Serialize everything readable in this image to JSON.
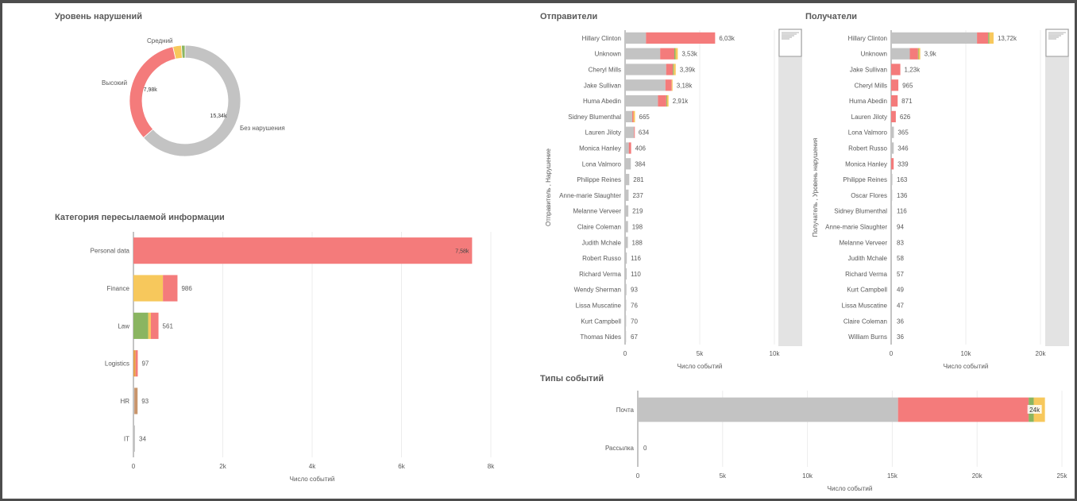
{
  "colors": {
    "grey": "#c3c3c3",
    "red": "#f47b7b",
    "yellow": "#f7c85c",
    "green": "#8ab561",
    "orange": "#e8a04a",
    "axis": "#8a8a8a",
    "grid": "#ececec",
    "text": "#595959"
  },
  "panels": {
    "violation_level": {
      "title": "Уровень нарушений"
    },
    "category": {
      "title": "Категория пересылаемой информации"
    },
    "senders": {
      "title": "Отправители"
    },
    "recipients": {
      "title": "Получатели"
    },
    "event_types": {
      "title": "Типы событий"
    }
  },
  "chart_data": [
    {
      "id": "violation_level",
      "type": "pie",
      "title": "Уровень нарушений",
      "slices": [
        {
          "label": "Без нарушения",
          "value": 15.34,
          "value_label": "15,34k",
          "color": "#c3c3c3"
        },
        {
          "label": "Высокий",
          "value": 7.98,
          "value_label": "7,98k",
          "color": "#f47b7b"
        },
        {
          "label": "Средний",
          "value": 0.6,
          "value_label": "",
          "color": "#f7c85c"
        },
        {
          "label": "",
          "value": 0.25,
          "value_label": "",
          "color": "#8ab561"
        }
      ]
    },
    {
      "id": "category",
      "type": "bar",
      "orientation": "horizontal",
      "stacked": true,
      "title": "Категория пересылаемой информации",
      "xlabel": "Число событий",
      "xlim": [
        0,
        8000
      ],
      "xticks": [
        "0",
        "2k",
        "4k",
        "6k",
        "8k"
      ],
      "categories": [
        "Personal data",
        "Finance",
        "Law",
        "Logistics",
        "HR",
        "IT"
      ],
      "totals": [
        7580,
        986,
        561,
        97,
        93,
        34
      ],
      "total_labels": [
        "7,58k",
        "986",
        "561",
        "97",
        "93",
        "34"
      ],
      "segments": [
        [
          {
            "c": "#f47b7b",
            "v": 7580
          }
        ],
        [
          {
            "c": "#f7c85c",
            "v": 660
          },
          {
            "c": "#f47b7b",
            "v": 326
          }
        ],
        [
          {
            "c": "#8ab561",
            "v": 330
          },
          {
            "c": "#f7c85c",
            "v": 60
          },
          {
            "c": "#f47b7b",
            "v": 171
          }
        ],
        [
          {
            "c": "#e8a04a",
            "v": 50
          },
          {
            "c": "#f47b7b",
            "v": 47
          }
        ],
        [
          {
            "c": "#c3c3c3",
            "v": 20
          },
          {
            "c": "#c8956b",
            "v": 73
          }
        ],
        [
          {
            "c": "#c3c3c3",
            "v": 34
          }
        ]
      ]
    },
    {
      "id": "senders",
      "type": "bar",
      "orientation": "horizontal",
      "stacked": true,
      "title": "Отправители",
      "xlabel": "Число событий",
      "ylabel": "Отправитель , Нарушение",
      "xlim": [
        0,
        10000
      ],
      "xticks": [
        "0",
        "5k",
        "10k"
      ],
      "categories": [
        "Hillary Clinton",
        "Unknown",
        "Cheryl Mills",
        "Jake Sullivan",
        "Huma Abedin",
        "Sidney Blumenthal",
        "Lauren Jiloty",
        "Monica Hanley",
        "Lona Valmoro",
        "Philippe Reines",
        "Anne-marie Slaughter",
        "Melanne Verveer",
        "Claire Coleman",
        "Judith Mchale",
        "Robert Russo",
        "Richard Verma",
        "Wendy Sherman",
        "Lissa Muscatine",
        "Kurt Campbell",
        "Thomas Nides"
      ],
      "totals": [
        6030,
        3530,
        3390,
        3180,
        2910,
        665,
        634,
        406,
        384,
        281,
        237,
        219,
        198,
        188,
        116,
        110,
        93,
        76,
        70,
        67
      ],
      "total_labels": [
        "6,03k",
        "3,53k",
        "3,39k",
        "3,18k",
        "2,91k",
        "665",
        "634",
        "406",
        "384",
        "281",
        "237",
        "219",
        "198",
        "188",
        "116",
        "110",
        "93",
        "76",
        "70",
        "67"
      ],
      "segments": [
        [
          {
            "c": "#c3c3c3",
            "v": 1400
          },
          {
            "c": "#f47b7b",
            "v": 4630
          }
        ],
        [
          {
            "c": "#c3c3c3",
            "v": 2350
          },
          {
            "c": "#f47b7b",
            "v": 950
          },
          {
            "c": "#8ab561",
            "v": 80
          },
          {
            "c": "#f7c85c",
            "v": 150
          }
        ],
        [
          {
            "c": "#c3c3c3",
            "v": 2750
          },
          {
            "c": "#f47b7b",
            "v": 450
          },
          {
            "c": "#8ab561",
            "v": 60
          },
          {
            "c": "#f7c85c",
            "v": 130
          }
        ],
        [
          {
            "c": "#c3c3c3",
            "v": 2700
          },
          {
            "c": "#f47b7b",
            "v": 420
          },
          {
            "c": "#f7c85c",
            "v": 60
          }
        ],
        [
          {
            "c": "#c3c3c3",
            "v": 2200
          },
          {
            "c": "#f47b7b",
            "v": 560
          },
          {
            "c": "#8ab561",
            "v": 50
          },
          {
            "c": "#f7c85c",
            "v": 100
          }
        ],
        [
          {
            "c": "#c3c3c3",
            "v": 480
          },
          {
            "c": "#f47b7b",
            "v": 80
          },
          {
            "c": "#f7c85c",
            "v": 105
          }
        ],
        [
          {
            "c": "#c3c3c3",
            "v": 600
          },
          {
            "c": "#f47b7b",
            "v": 34
          }
        ],
        [
          {
            "c": "#c3c3c3",
            "v": 250
          },
          {
            "c": "#f47b7b",
            "v": 156
          }
        ],
        [
          {
            "c": "#c3c3c3",
            "v": 384
          }
        ],
        [
          {
            "c": "#c3c3c3",
            "v": 281
          }
        ],
        [
          {
            "c": "#c3c3c3",
            "v": 237
          }
        ],
        [
          {
            "c": "#c3c3c3",
            "v": 219
          }
        ],
        [
          {
            "c": "#c3c3c3",
            "v": 198
          }
        ],
        [
          {
            "c": "#c3c3c3",
            "v": 188
          }
        ],
        [
          {
            "c": "#c3c3c3",
            "v": 116
          }
        ],
        [
          {
            "c": "#c3c3c3",
            "v": 110
          }
        ],
        [
          {
            "c": "#c3c3c3",
            "v": 93
          }
        ],
        [
          {
            "c": "#c3c3c3",
            "v": 76
          }
        ],
        [
          {
            "c": "#c3c3c3",
            "v": 70
          }
        ],
        [
          {
            "c": "#c3c3c3",
            "v": 67
          }
        ]
      ]
    },
    {
      "id": "recipients",
      "type": "bar",
      "orientation": "horizontal",
      "stacked": true,
      "title": "Получатели",
      "xlabel": "Число событий",
      "ylabel": "Получатель , Уровень нарушения",
      "xlim": [
        0,
        20000
      ],
      "xticks": [
        "0",
        "10k",
        "20k"
      ],
      "categories": [
        "Hillary Clinton",
        "Unknown",
        "Jake Sullivan",
        "Cheryl Mills",
        "Huma Abedin",
        "Lauren Jiloty",
        "Lona Valmoro",
        "Robert Russo",
        "Monica Hanley",
        "Philippe Reines",
        "Oscar Flores",
        "Sidney Blumenthal",
        "Anne-marie Slaughter",
        "Melanne Verveer",
        "Judith Mchale",
        "Richard Verma",
        "Kurt Campbell",
        "Lissa Muscatine",
        "Claire Coleman",
        "William Burns"
      ],
      "totals": [
        13720,
        3900,
        1230,
        965,
        871,
        626,
        365,
        346,
        339,
        163,
        136,
        116,
        94,
        83,
        58,
        57,
        49,
        47,
        36,
        36
      ],
      "total_labels": [
        "13,72k",
        "3,9k",
        "1,23k",
        "965",
        "871",
        "626",
        "365",
        "346",
        "339",
        "163",
        "136",
        "116",
        "94",
        "83",
        "58",
        "57",
        "49",
        "47",
        "36",
        "36"
      ],
      "segments": [
        [
          {
            "c": "#c3c3c3",
            "v": 11500
          },
          {
            "c": "#f47b7b",
            "v": 1500
          },
          {
            "c": "#8ab561",
            "v": 150
          },
          {
            "c": "#f7c85c",
            "v": 570
          }
        ],
        [
          {
            "c": "#c3c3c3",
            "v": 2500
          },
          {
            "c": "#f47b7b",
            "v": 1100
          },
          {
            "c": "#8ab561",
            "v": 80
          },
          {
            "c": "#f7c85c",
            "v": 220
          }
        ],
        [
          {
            "c": "#f47b7b",
            "v": 1230
          }
        ],
        [
          {
            "c": "#f47b7b",
            "v": 965
          }
        ],
        [
          {
            "c": "#f47b7b",
            "v": 871
          }
        ],
        [
          {
            "c": "#f47b7b",
            "v": 626
          }
        ],
        [
          {
            "c": "#c3c3c3",
            "v": 365
          }
        ],
        [
          {
            "c": "#c3c3c3",
            "v": 346
          }
        ],
        [
          {
            "c": "#f47b7b",
            "v": 339
          }
        ],
        [
          {
            "c": "#c3c3c3",
            "v": 163
          }
        ],
        [
          {
            "c": "#c3c3c3",
            "v": 136
          }
        ],
        [
          {
            "c": "#c3c3c3",
            "v": 116
          }
        ],
        [
          {
            "c": "#c3c3c3",
            "v": 94
          }
        ],
        [
          {
            "c": "#c3c3c3",
            "v": 83
          }
        ],
        [
          {
            "c": "#c3c3c3",
            "v": 58
          }
        ],
        [
          {
            "c": "#c3c3c3",
            "v": 57
          }
        ],
        [
          {
            "c": "#c3c3c3",
            "v": 49
          }
        ],
        [
          {
            "c": "#c3c3c3",
            "v": 47
          }
        ],
        [
          {
            "c": "#c3c3c3",
            "v": 36
          }
        ],
        [
          {
            "c": "#c3c3c3",
            "v": 36
          }
        ]
      ]
    },
    {
      "id": "event_types",
      "type": "bar",
      "orientation": "horizontal",
      "stacked": true,
      "title": "Типы событий",
      "xlabel": "Число событий",
      "xlim": [
        0,
        25000
      ],
      "xticks": [
        "0",
        "5k",
        "10k",
        "15k",
        "20k",
        "25k"
      ],
      "categories": [
        "Почта",
        "Рассылка"
      ],
      "totals": [
        24000,
        0
      ],
      "total_labels": [
        "24k",
        "0"
      ],
      "segments": [
        [
          {
            "c": "#c3c3c3",
            "v": 15340
          },
          {
            "c": "#f47b7b",
            "v": 7700
          },
          {
            "c": "#8ab561",
            "v": 300
          },
          {
            "c": "#f7c85c",
            "v": 660
          }
        ],
        []
      ]
    }
  ]
}
